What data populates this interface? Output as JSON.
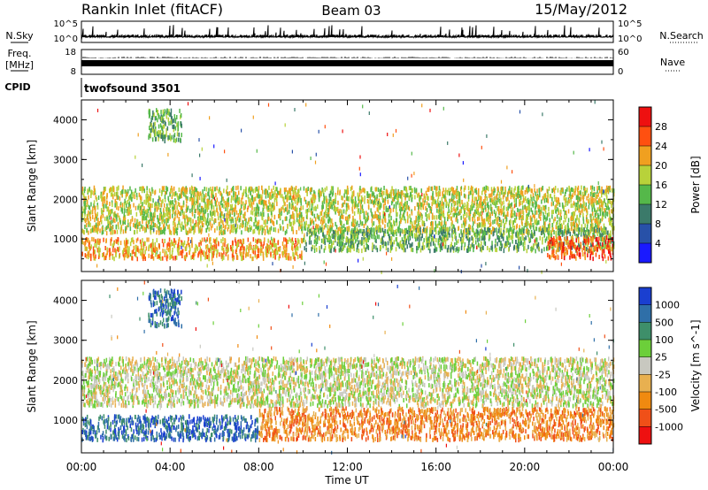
{
  "header": {
    "station": "Rankin Inlet (fitACF)",
    "beam": "Beam 03",
    "date": "15/May/2012"
  },
  "noise_panel": {
    "left_label": "N.Sky",
    "right_label": "N.Search",
    "left_ticks": [
      "10^5",
      "10^0"
    ],
    "right_ticks": [
      "10^5",
      "10^0"
    ]
  },
  "freq_panel": {
    "left_label_line1": "Freq.",
    "left_label_line2": "[MHz]",
    "right_label": "Nave",
    "left_ticks": [
      "18",
      "8"
    ],
    "right_ticks": [
      "60",
      "0"
    ]
  },
  "cpid_panel": {
    "label": "CPID",
    "program": "twofsound 3501"
  },
  "chart_data": [
    {
      "type": "heatmap",
      "title": "",
      "parameter": "Power",
      "xlabel": "",
      "ylabel": "Slant Range [km]",
      "colorbar_label": "Power [dB]",
      "colorbar_ticks": [
        "4",
        "8",
        "12",
        "16",
        "20",
        "24",
        "28"
      ],
      "ylim": [
        180,
        4500
      ],
      "xlim": [
        "00:00",
        "24:00"
      ],
      "y_ticks": [
        "1000",
        "2000",
        "3000",
        "4000"
      ],
      "colors": [
        "#1a1aff",
        "#2851a8",
        "#3b7a6a",
        "#55b84a",
        "#b8d23a",
        "#f0a020",
        "#ff5010",
        "#ee1010"
      ],
      "regions": [
        {
          "t_start": 0.0,
          "t_end": 24.0,
          "range_low": 1200,
          "range_high": 2350,
          "power_db": 14
        },
        {
          "t_start": 0.0,
          "t_end": 10.0,
          "range_low": 550,
          "range_high": 1050,
          "power_db": 20
        },
        {
          "t_start": 10.0,
          "t_end": 24.0,
          "range_low": 750,
          "range_high": 1300,
          "power_db": 10
        },
        {
          "t_start": 21.0,
          "t_end": 24.0,
          "range_low": 550,
          "range_high": 1100,
          "power_db": 24
        },
        {
          "t_start": 3.0,
          "t_end": 4.5,
          "range_low": 3500,
          "range_high": 4300,
          "power_db": 12
        }
      ]
    },
    {
      "type": "heatmap",
      "title": "",
      "parameter": "Velocity",
      "xlabel": "Time UT",
      "ylabel": "Slant Range [km]",
      "colorbar_label": "Velocity [m s^-1]",
      "colorbar_ticks": [
        "1000",
        "500",
        "100",
        "25",
        "-25",
        "-100",
        "-500",
        "-1000"
      ],
      "ylim": [
        180,
        4500
      ],
      "xlim": [
        "00:00",
        "24:00"
      ],
      "y_ticks": [
        "1000",
        "2000",
        "3000",
        "4000"
      ],
      "x_ticks": [
        "00:00",
        "04:00",
        "08:00",
        "12:00",
        "16:00",
        "20:00",
        "00:00"
      ],
      "colors": [
        "#1a3fd0",
        "#2f6fa8",
        "#3e8f6a",
        "#6ccf3a",
        "#c8c8c0",
        "#e8b050",
        "#f08a10",
        "#f05018",
        "#ee1010"
      ],
      "regions": [
        {
          "t_start": 0.0,
          "t_end": 24.0,
          "range_low": 1400,
          "range_high": 2600,
          "velocity_ms": 0
        },
        {
          "t_start": 0.0,
          "t_end": 8.0,
          "range_low": 550,
          "range_high": 1150,
          "velocity_ms": 300
        },
        {
          "t_start": 8.0,
          "t_end": 24.0,
          "range_low": 550,
          "range_high": 1350,
          "velocity_ms": -300
        },
        {
          "t_start": 3.0,
          "t_end": 4.5,
          "range_low": 3400,
          "range_high": 4300,
          "velocity_ms": 300
        }
      ]
    }
  ]
}
